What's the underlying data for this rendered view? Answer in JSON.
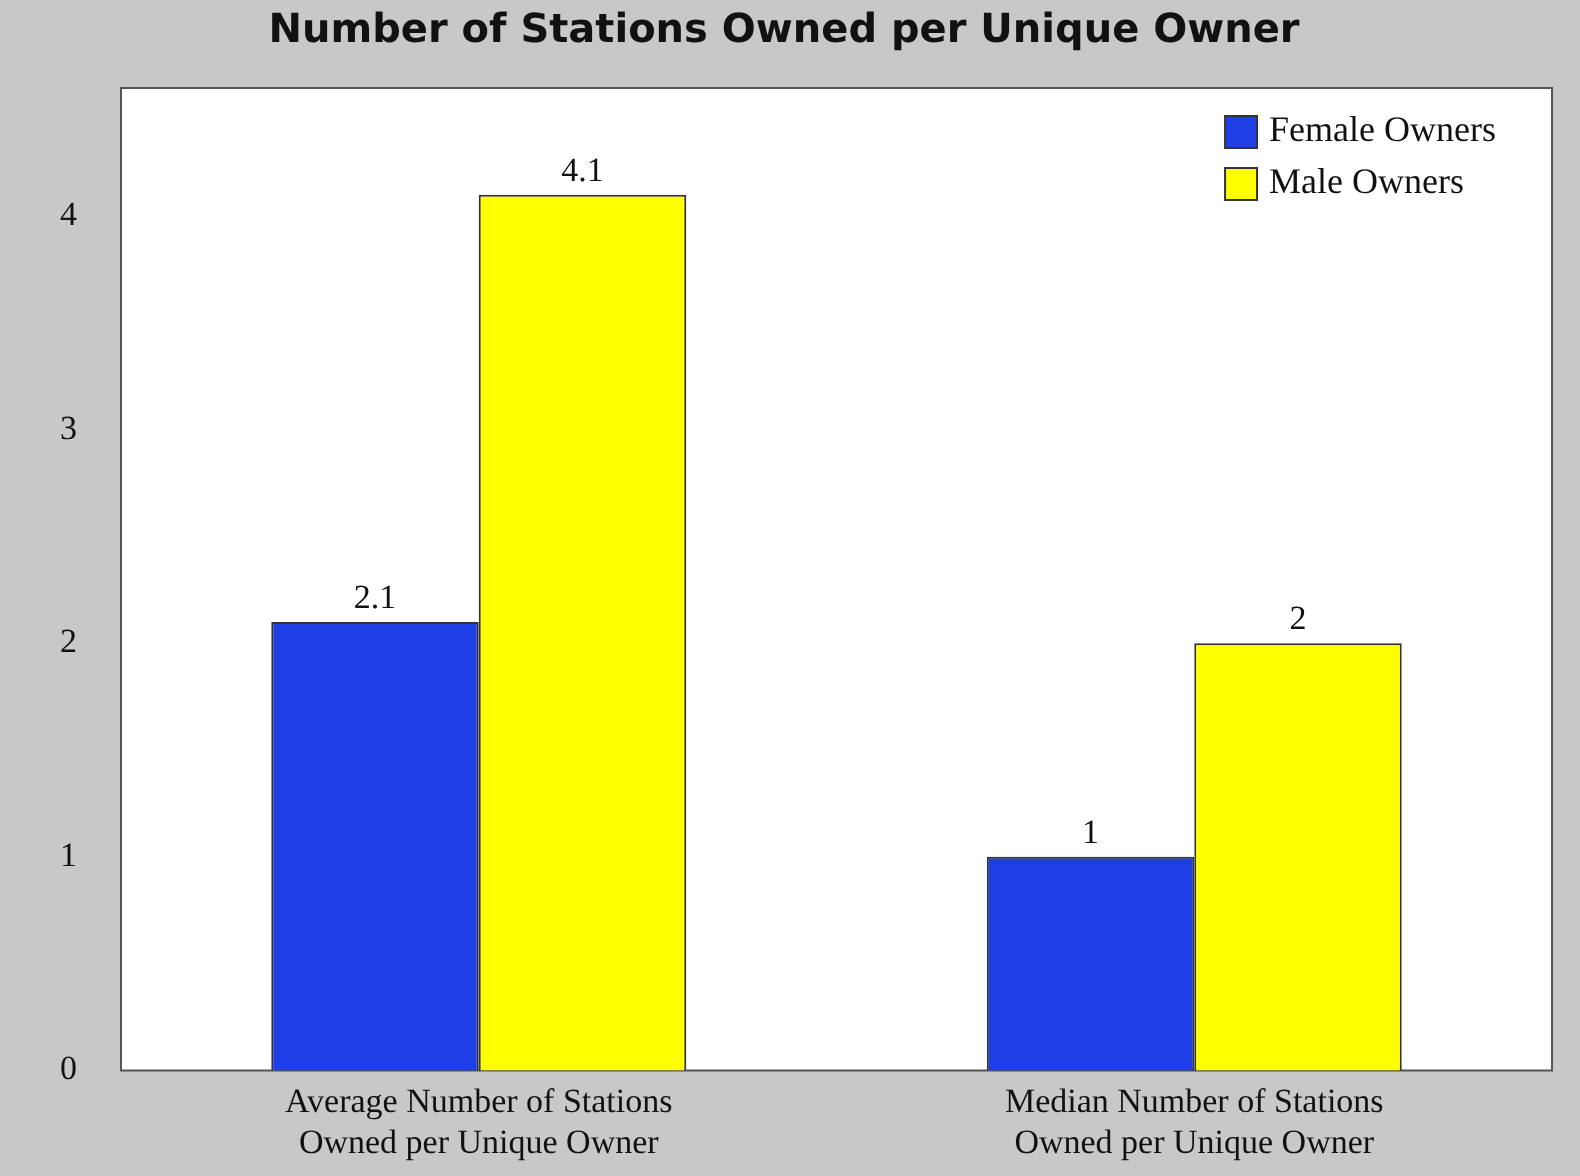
{
  "chart_data": {
    "type": "bar",
    "title": "Number of Stations Owned per Unique Owner",
    "categories": [
      "Average Number of Stations Owned per Unique Owner",
      "Median Number of Stations Owned per Unique Owner"
    ],
    "series": [
      {
        "name": "Female Owners",
        "color": "#1f3fe6",
        "values": [
          2.1,
          1
        ]
      },
      {
        "name": "Male Owners",
        "color": "#ffff00",
        "values": [
          4.1,
          2
        ]
      }
    ],
    "ylim": [
      0,
      4.6
    ],
    "yticks": [
      0,
      1,
      2,
      3,
      4
    ],
    "grid": false,
    "legend": "top right",
    "data_labels": true
  }
}
